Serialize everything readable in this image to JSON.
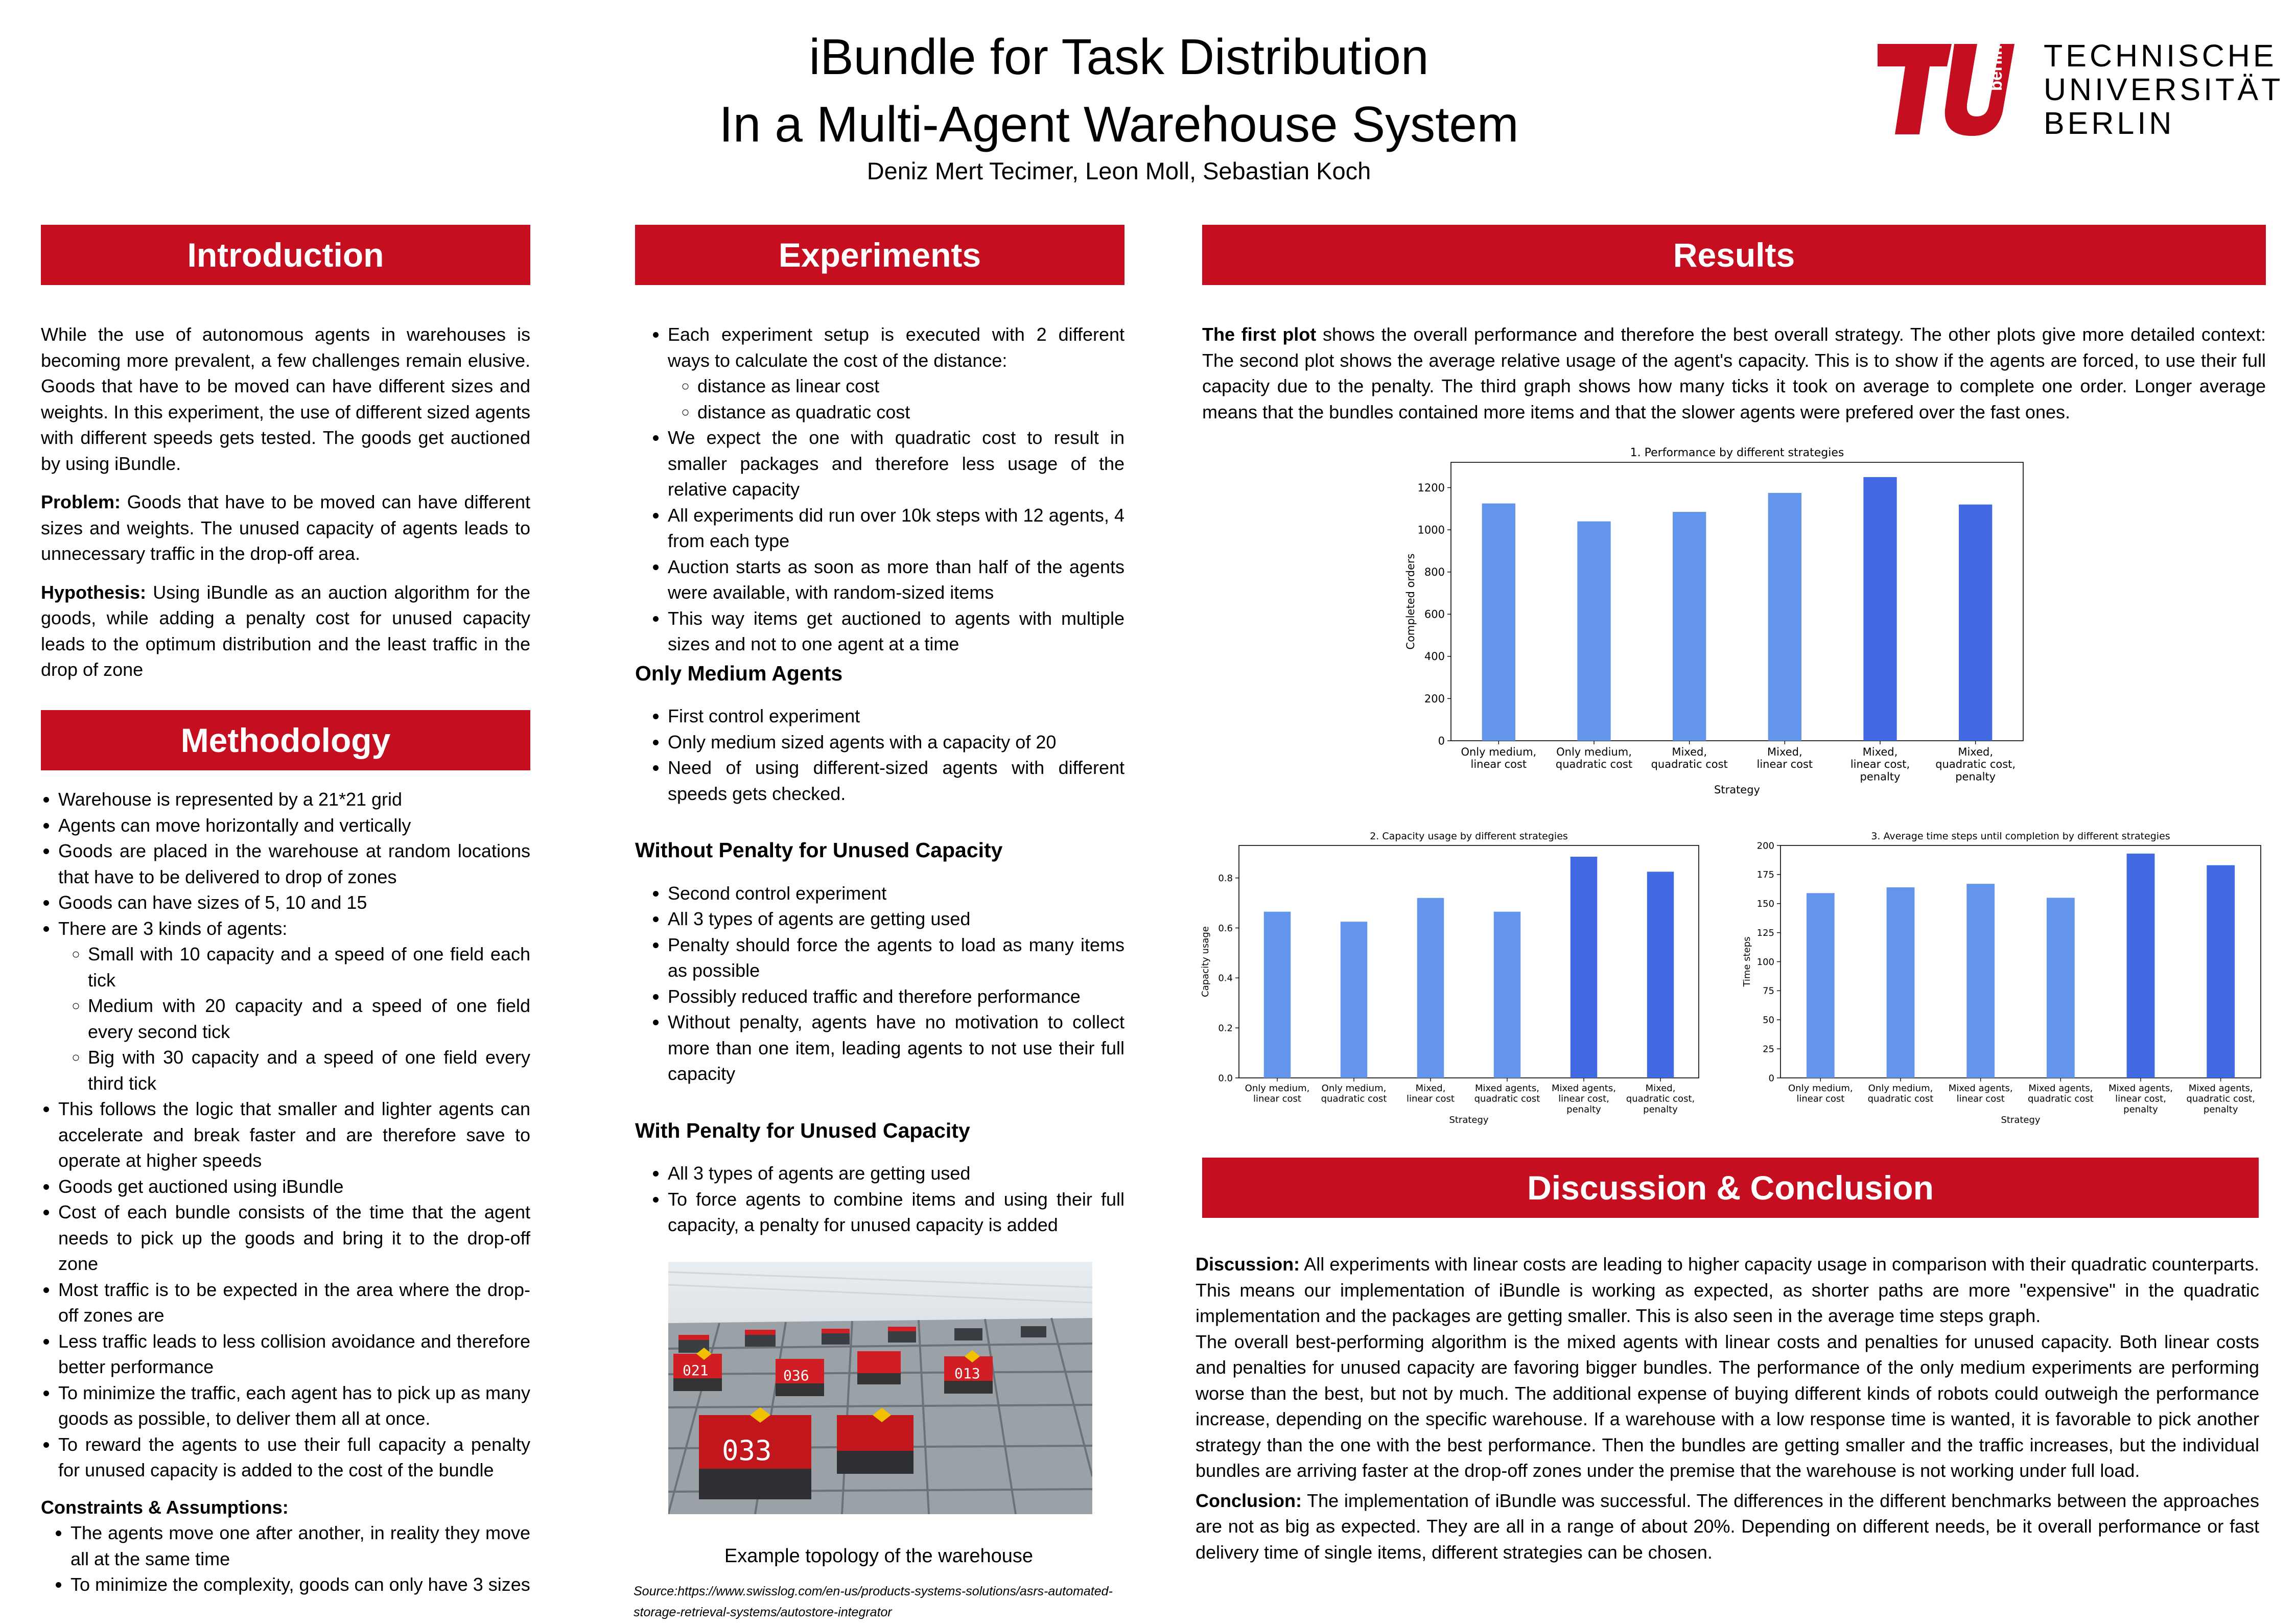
{
  "header": {
    "title_line1": "iBundle for Task Distribution",
    "title_line2": "In a Multi-Agent Warehouse System",
    "authors": "Deniz Mert Tecimer, Leon Moll, Sebastian Koch",
    "logo": {
      "mark_text": "berlin",
      "line1": "TECHNISCHE",
      "line2": "UNIVERSITÄT",
      "line3": "BERLIN",
      "color": "#c50e1f"
    }
  },
  "sections": {
    "introduction": "Introduction",
    "methodology": "Methodology",
    "experiments": "Experiments",
    "results": "Results",
    "discussion": "Discussion & Conclusion"
  },
  "introduction": {
    "text": "While the use of autonomous agents in warehouses is becoming more prevalent, a few challenges remain elusive. Goods that have to be moved can have different sizes and weights. In this experiment, the use of different sized agents with different speeds gets tested. The goods get auctioned by using iBundle.",
    "problem_label": "Problem:",
    "problem_text": "Goods that have to be moved can have different sizes and weights. The unused capacity of agents leads to unnecessary traffic in the drop-off area.",
    "hypothesis_label": "Hypothesis:",
    "hypothesis_text": "Using iBundle as an auction algorithm for the goods, while adding a penalty cost for unused capacity leads to the optimum distribution and the least traffic in the drop of zone"
  },
  "methodology": {
    "items": [
      "Warehouse is represented by a 21*21 grid",
      "Agents can move horizontally and vertically",
      "Goods are placed in the warehouse at random locations that have to be delivered to drop of zones",
      "Goods can have sizes of 5, 10 and 15",
      "There are 3 kinds of agents:",
      "This follows the logic that smaller and lighter agents can accelerate and break faster and are therefore save to operate at higher speeds",
      "Goods get auctioned using iBundle",
      "Cost of each bundle consists of the time that the agent needs to pick up the goods and bring it to the drop-off zone",
      "Most traffic is to be expected in the area where the drop-off zones are",
      "Less traffic leads to less collision avoidance and therefore better performance",
      "To minimize the traffic, each agent has to pick up as many goods as possible, to deliver them all at once.",
      "To reward the agents to use their full capacity a penalty for unused capacity is added to the cost of the bundle"
    ],
    "agent_kinds": [
      "Small with 10 capacity and a speed of one field each tick",
      "Medium with 20 capacity and a speed of one field every second tick",
      "Big with 30 capacity and a speed of one field every third tick"
    ],
    "constraints_label": "Constraints & Assumptions:",
    "constraints": [
      "The agents move one after another, in reality they move all at the same time",
      "To minimize the complexity, goods can only have 3 sizes"
    ]
  },
  "experiments": {
    "items": [
      "Each experiment setup is executed with 2 different ways to calculate the cost of the distance:",
      "We expect the one with quadratic cost to result in smaller packages and therefore less usage of the relative capacity",
      "All experiments did run over 10k steps with 12 agents, 4 from each type",
      "Auction starts as soon as more than half of the agents were available, with random-sized items",
      "This way items get auctioned to agents with multiple sizes and not to one agent at a time"
    ],
    "cost_ways": [
      " distance as linear cost",
      "distance as quadratic cost"
    ],
    "medium_title": "Only Medium Agents",
    "medium_items": [
      "First control experiment",
      "Only medium sized agents with a capacity of 20",
      "Need of using different-sized agents with different speeds gets checked."
    ],
    "no_penalty_title": "Without Penalty for Unused Capacity",
    "no_penalty_items": [
      "Second control experiment",
      "All 3 types of agents are getting used",
      "Penalty should force the agents to load as many items as possible",
      "Possibly reduced traffic and therefore performance",
      "Without penalty, agents have no motivation to collect more than one item, leading agents to not use their full capacity"
    ],
    "penalty_title": "With Penalty for Unused Capacity",
    "penalty_items": [
      "All 3 types of agents are getting used",
      "To force agents to combine items and using their full capacity, a penalty for unused capacity is added"
    ],
    "photo_labels": [
      "021",
      "036",
      "033",
      "013"
    ],
    "caption": "Example topology of the warehouse",
    "source": "Source:https://www.swisslog.com/en-us/products-systems-solutions/asrs-automated-storage-retrieval-systems/autostore-integrator"
  },
  "results": {
    "intro_label": "The first plot",
    "intro_text": "shows the overall performance and therefore the best overall strategy. The other plots give more detailed context: The second plot shows the average relative usage of the agent's capacity. This is to show if the agents are forced, to use their full capacity due to the penalty. The third graph shows how many ticks it took on average to complete one order. Longer average means that the bundles contained more items and that the slower agents were prefered over the fast ones."
  },
  "chart_data": [
    {
      "type": "bar",
      "title": "1. Performance by different strategies",
      "xlabel": "Strategy",
      "ylabel": "Completed orders",
      "categories": [
        [
          "Only medium,",
          "linear cost"
        ],
        [
          "Only medium,",
          "quadratic cost"
        ],
        [
          "Mixed,",
          "quadratic cost"
        ],
        [
          "Mixed,",
          "linear cost"
        ],
        [
          "Mixed,",
          "linear cost,",
          "penalty"
        ],
        [
          "Mixed,",
          "quadratic cost,",
          "penalty"
        ]
      ],
      "values": [
        1125,
        1040,
        1085,
        1175,
        1250,
        1120
      ],
      "bar_colors": [
        "#6495ed",
        "#6495ed",
        "#6495ed",
        "#6495ed",
        "#4169e1",
        "#4169e1"
      ],
      "yticks": [
        0,
        200,
        400,
        600,
        800,
        1000,
        1200
      ],
      "ylim": [
        0,
        1320
      ],
      "grid": false
    },
    {
      "type": "bar",
      "title": "2. Capacity usage by different strategies",
      "xlabel": "Strategy",
      "ylabel": "Capacity usage",
      "categories": [
        [
          "Only medium,",
          "linear cost"
        ],
        [
          "Only medium,",
          "quadratic cost"
        ],
        [
          "Mixed,",
          "linear cost"
        ],
        [
          "Mixed agents,",
          "quadratic cost"
        ],
        [
          "Mixed agents,",
          "linear cost,",
          "penalty"
        ],
        [
          "Mixed,",
          "quadratic cost,",
          "penalty"
        ]
      ],
      "values": [
        0.665,
        0.625,
        0.72,
        0.665,
        0.885,
        0.825
      ],
      "bar_colors": [
        "#6495ed",
        "#6495ed",
        "#6495ed",
        "#6495ed",
        "#4169e1",
        "#4169e1"
      ],
      "yticks": [
        "0.0",
        "0.2",
        "0.4",
        "0.6",
        "0.8"
      ],
      "ylim": [
        0,
        0.93
      ],
      "grid": false
    },
    {
      "type": "bar",
      "title": "3. Average time steps until completion by different strategies",
      "xlabel": "Strategy",
      "ylabel": "Time steps",
      "categories": [
        [
          "Only medium,",
          "linear cost"
        ],
        [
          "Only medium,",
          "quadratic cost"
        ],
        [
          "Mixed agents,",
          "linear cost"
        ],
        [
          "Mixed agents,",
          "quadratic cost"
        ],
        [
          "Mixed agents,",
          "linear cost,",
          "penalty"
        ],
        [
          "Mixed agents,",
          "quadratic cost,",
          "penalty"
        ]
      ],
      "values": [
        159,
        164,
        167,
        155,
        193,
        183
      ],
      "bar_colors": [
        "#6495ed",
        "#6495ed",
        "#6495ed",
        "#6495ed",
        "#4169e1",
        "#4169e1"
      ],
      "yticks": [
        0,
        25,
        50,
        75,
        100,
        125,
        150,
        175,
        200
      ],
      "ylim": [
        0,
        200
      ],
      "grid": false
    }
  ],
  "discussion": {
    "discussion_label": "Discussion:",
    "discussion_text": "All experiments with linear costs are leading to higher capacity usage in comparison with their quadratic counterparts. This means our implementation of iBundle is working as expected, as shorter paths are more \"expensive\" in the quadratic implementation and the packages are getting smaller. This is also seen in the average time steps graph.",
    "paragraph2": "The overall best-performing algorithm is the mixed agents with linear costs and penalties for unused capacity. Both linear costs and penalties for unused capacity are favoring bigger bundles. The performance of the only medium experiments are performing worse than the best, but not by much. The additional expense of buying different kinds of robots could outweigh the performance increase, depending on the specific warehouse. If a warehouse with a low response time is wanted, it is favorable to pick another strategy than the one with the best performance. Then the bundles are getting smaller and the traffic increases, but the individual bundles are arriving faster at the drop-off zones under the premise that the warehouse is not working under full load.",
    "conclusion_label": "Conclusion:",
    "conclusion_text": "The implementation of iBundle was successful. The differences in the different benchmarks between the approaches are not as big as expected. They are all in a range of about 20%. Depending on different needs, be it overall performance or fast delivery time of single items, different strategies can be chosen."
  }
}
